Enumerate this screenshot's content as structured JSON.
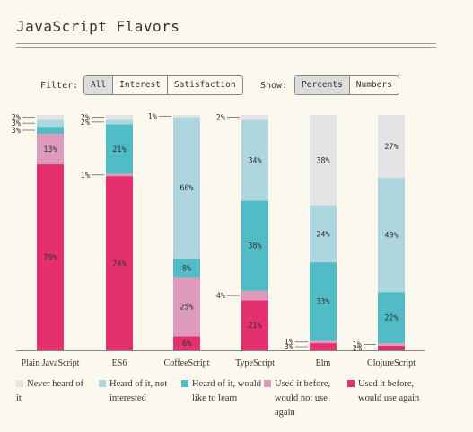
{
  "title": "JavaScript Flavors",
  "controls": {
    "filter_label": "Filter:",
    "filter_options": [
      "All",
      "Interest",
      "Satisfaction"
    ],
    "filter_selected": "All",
    "show_label": "Show:",
    "show_options": [
      "Percents",
      "Numbers"
    ],
    "show_selected": "Percents"
  },
  "colors": {
    "never_heard": "#e4e4e6",
    "not_interested": "#aed6de",
    "like_to_learn": "#52bcc6",
    "would_not_use": "#dc9bbb",
    "use_again": "#e4306f"
  },
  "chart_data": {
    "type": "bar",
    "stacked": true,
    "categories": [
      "Plain JavaScript",
      "ES6",
      "CoffeeScript",
      "TypeScript",
      "Elm",
      "ClojureScript"
    ],
    "series": [
      {
        "name": "Used it before, would use again",
        "values": [
          79,
          74,
          6,
          21,
          3,
          2
        ]
      },
      {
        "name": "Used it before, would not use again",
        "values": [
          13,
          1,
          25,
          4,
          1,
          1
        ]
      },
      {
        "name": "Heard of it, would like to learn",
        "values": [
          3,
          21,
          8,
          38,
          33,
          22
        ]
      },
      {
        "name": "Heard of it, not interested",
        "values": [
          3,
          2,
          60,
          34,
          24,
          49
        ]
      },
      {
        "name": "Never heard of it",
        "values": [
          2,
          2,
          1,
          2,
          38,
          27
        ]
      }
    ],
    "value_labels": [
      [
        "79%",
        "13%",
        "3%",
        "3%",
        "2%"
      ],
      [
        "74%",
        "1%",
        "21%",
        "2%",
        "2%"
      ],
      [
        "6%",
        "25%",
        "8%",
        "60%",
        "1%"
      ],
      [
        "21%",
        "4%",
        "38%",
        "34%",
        "2%"
      ],
      [
        "3%",
        "1%",
        "33%",
        "24%",
        "38%"
      ],
      [
        "2%",
        "1%",
        "22%",
        "49%",
        "27%"
      ]
    ],
    "ylim": [
      0,
      100
    ],
    "legend_position": "bottom"
  },
  "legend": [
    {
      "key": "never_heard",
      "label": "Never heard of it"
    },
    {
      "key": "not_interested",
      "label": "Heard of it, not interested"
    },
    {
      "key": "like_to_learn",
      "label": "Heard of it, would like to learn"
    },
    {
      "key": "would_not_use",
      "label": "Used it before, would not use again"
    },
    {
      "key": "use_again",
      "label": "Used it before, would use again"
    }
  ]
}
